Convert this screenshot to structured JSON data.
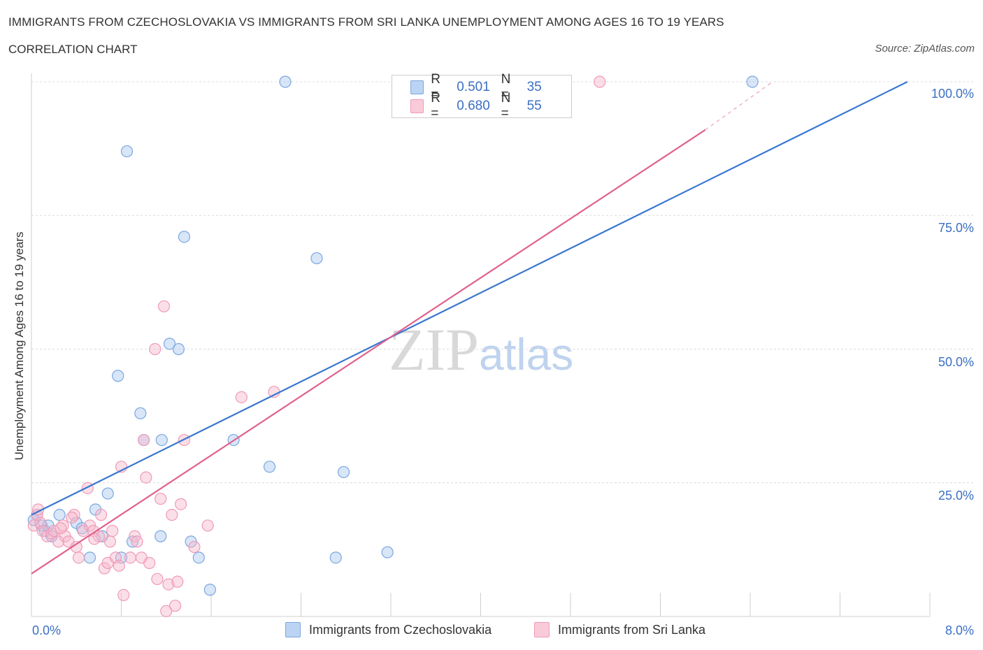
{
  "header": {
    "title": "IMMIGRANTS FROM CZECHOSLOVAKIA VS IMMIGRANTS FROM SRI LANKA UNEMPLOYMENT AMONG AGES 16 TO 19 YEARS",
    "subtitle": "CORRELATION CHART",
    "source": "Source: ZipAtlas.com"
  },
  "watermark": {
    "main": "ZIP",
    "suffix": "atlas"
  },
  "legend": {
    "rows": [
      {
        "r_label": "R =",
        "r_value": "0.501",
        "n_label": "N =",
        "n_value": "35",
        "color": "#a9c8f0"
      },
      {
        "r_label": "R =",
        "r_value": "0.680",
        "n_label": "N =",
        "n_value": "55",
        "color": "#f6b8cb"
      }
    ]
  },
  "bottom_legend": {
    "czech": "Immigrants from Czechoslovakia",
    "srilanka": "Immigrants from Sri Lanka"
  },
  "chart_data": {
    "type": "scatter",
    "title": "IMMIGRANTS FROM CZECHOSLOVAKIA VS IMMIGRANTS FROM SRI LANKA UNEMPLOYMENT AMONG AGES 16 TO 19 YEARS",
    "xlabel": "",
    "ylabel": "Unemployment Among Ages 16 to 19 years",
    "xlim": [
      0,
      8
    ],
    "ylim": [
      0,
      100
    ],
    "x_tick_labels": [
      "0.0%",
      "8.0%"
    ],
    "y_tick_labels": [
      "100.0%",
      "75.0%",
      "50.0%",
      "25.0%"
    ],
    "y_ticks": [
      100,
      75,
      50,
      25
    ],
    "grid": true,
    "legend_position": "top-center",
    "series": [
      {
        "name": "Immigrants from Czechoslovakia",
        "color": "#7aa7e0",
        "trend_color": "#3a78d0",
        "trend": {
          "x0": 0,
          "y0": 19.0,
          "x1": 7.8,
          "y1": 100.0
        },
        "points": [
          [
            0.02,
            18.0
          ],
          [
            0.05,
            19.0
          ],
          [
            0.09,
            17.0
          ],
          [
            0.12,
            16.0
          ],
          [
            0.15,
            17.0
          ],
          [
            0.18,
            15.0
          ],
          [
            0.25,
            19.0
          ],
          [
            0.4,
            17.5
          ],
          [
            0.45,
            16.5
          ],
          [
            0.52,
            11.0
          ],
          [
            0.57,
            20.0
          ],
          [
            0.63,
            15.0
          ],
          [
            0.68,
            23.0
          ],
          [
            0.77,
            45.0
          ],
          [
            0.8,
            11.0
          ],
          [
            0.85,
            87.0
          ],
          [
            0.9,
            14.0
          ],
          [
            0.97,
            38.0
          ],
          [
            1.0,
            33.0
          ],
          [
            1.15,
            15.0
          ],
          [
            1.16,
            33.0
          ],
          [
            1.23,
            51.0
          ],
          [
            1.31,
            50.0
          ],
          [
            1.36,
            71.0
          ],
          [
            1.42,
            14.0
          ],
          [
            1.49,
            11.0
          ],
          [
            1.59,
            5.0
          ],
          [
            1.8,
            33.0
          ],
          [
            2.12,
            28.0
          ],
          [
            2.26,
            100.0
          ],
          [
            2.54,
            67.0
          ],
          [
            2.71,
            11.0
          ],
          [
            2.78,
            27.0
          ],
          [
            3.17,
            12.0
          ],
          [
            6.42,
            100.0
          ]
        ]
      },
      {
        "name": "Immigrants from Sri Lanka",
        "color": "#f09ab6",
        "trend_color": "#e0608e",
        "trend": {
          "x0": 0,
          "y0": 8.0,
          "x1": 6.0,
          "y1": 91.0
        },
        "trend_dashed_to": {
          "x": 6.6,
          "y": 100.0
        },
        "points": [
          [
            0.02,
            17.0
          ],
          [
            0.05,
            19.0
          ],
          [
            0.06,
            20.0
          ],
          [
            0.08,
            17.5
          ],
          [
            0.1,
            16.0
          ],
          [
            0.14,
            15.0
          ],
          [
            0.18,
            15.5
          ],
          [
            0.2,
            16.0
          ],
          [
            0.24,
            14.0
          ],
          [
            0.28,
            17.0
          ],
          [
            0.3,
            15.0
          ],
          [
            0.33,
            14.0
          ],
          [
            0.38,
            19.0
          ],
          [
            0.4,
            13.0
          ],
          [
            0.42,
            11.0
          ],
          [
            0.46,
            16.0
          ],
          [
            0.5,
            24.0
          ],
          [
            0.52,
            17.0
          ],
          [
            0.55,
            16.0
          ],
          [
            0.6,
            15.0
          ],
          [
            0.62,
            19.0
          ],
          [
            0.65,
            9.0
          ],
          [
            0.68,
            10.0
          ],
          [
            0.7,
            14.0
          ],
          [
            0.72,
            16.0
          ],
          [
            0.75,
            11.0
          ],
          [
            0.78,
            9.5
          ],
          [
            0.8,
            28.0
          ],
          [
            0.82,
            4.0
          ],
          [
            0.88,
            11.0
          ],
          [
            0.92,
            15.0
          ],
          [
            0.94,
            14.0
          ],
          [
            0.98,
            11.0
          ],
          [
            1.0,
            33.0
          ],
          [
            1.02,
            26.0
          ],
          [
            1.05,
            10.0
          ],
          [
            1.1,
            50.0
          ],
          [
            1.12,
            7.0
          ],
          [
            1.15,
            22.0
          ],
          [
            1.18,
            58.0
          ],
          [
            1.2,
            1.0
          ],
          [
            1.22,
            6.0
          ],
          [
            1.25,
            19.0
          ],
          [
            1.28,
            2.0
          ],
          [
            1.3,
            6.5
          ],
          [
            1.33,
            21.0
          ],
          [
            1.36,
            33.0
          ],
          [
            1.45,
            13.0
          ],
          [
            1.57,
            17.0
          ],
          [
            1.87,
            41.0
          ],
          [
            2.16,
            42.0
          ],
          [
            5.06,
            100.0
          ],
          [
            0.36,
            18.5
          ],
          [
            0.56,
            14.5
          ],
          [
            0.26,
            16.5
          ]
        ]
      }
    ]
  }
}
